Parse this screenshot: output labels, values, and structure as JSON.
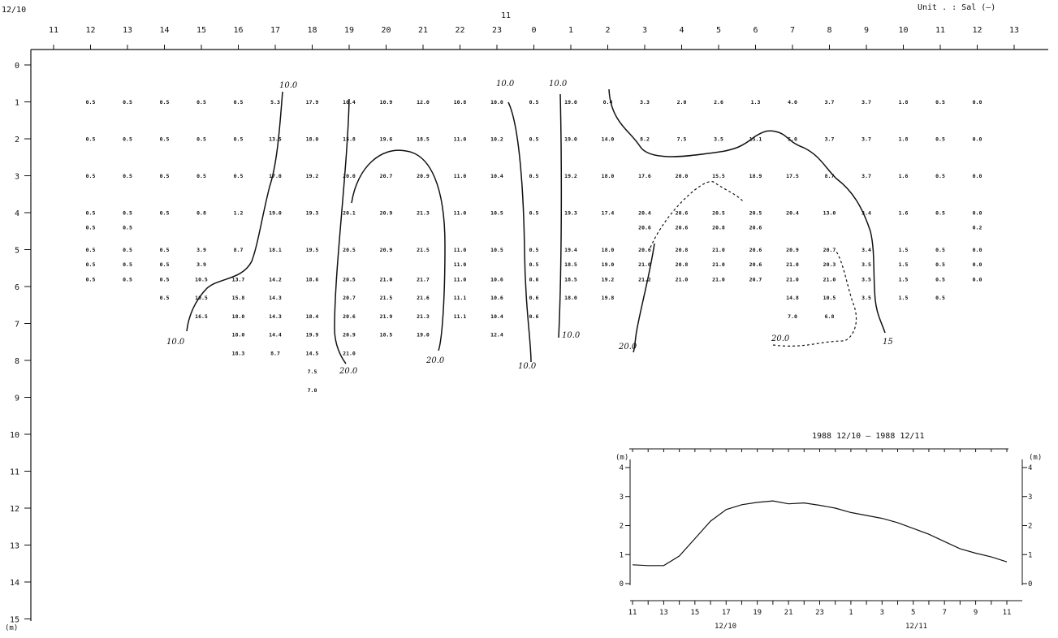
{
  "header": {
    "start_date": "12/10",
    "mid_date": "11",
    "unit_text": "Unit . : Sal (—)"
  },
  "chart_data": [
    {
      "type": "table",
      "title": "",
      "variable": "Sal",
      "x_axis": {
        "ticks": [
          "11",
          "12",
          "13",
          "14",
          "15",
          "16",
          "17",
          "18",
          "19",
          "20",
          "21",
          "22",
          "23",
          "0",
          "1",
          "2",
          "3",
          "4",
          "5",
          "6",
          "7",
          "8",
          "9",
          "10",
          "11",
          "12",
          "13"
        ]
      },
      "y_axis": {
        "ticks": [
          "0",
          "1",
          "2",
          "3",
          "4",
          "5",
          "6",
          "7",
          "8",
          "9",
          "10",
          "11",
          "12",
          "13",
          "14",
          "15"
        ],
        "unit": "(m)",
        "range": [
          0,
          15
        ],
        "inverted": true
      },
      "columns": [
        {
          "hour": "12",
          "points": [
            [
              1,
              "0.5"
            ],
            [
              2,
              "0.5"
            ],
            [
              3,
              "0.5"
            ],
            [
              4,
              "0.5"
            ],
            [
              4.4,
              "0.5"
            ],
            [
              5,
              "0.5"
            ],
            [
              5.4,
              "0.5"
            ],
            [
              5.8,
              "0.5"
            ]
          ]
        },
        {
          "hour": "13",
          "points": [
            [
              1,
              "0.5"
            ],
            [
              2,
              "0.5"
            ],
            [
              3,
              "0.5"
            ],
            [
              4,
              "0.5"
            ],
            [
              4.4,
              "0.5"
            ],
            [
              5,
              "0.5"
            ],
            [
              5.4,
              "0.5"
            ],
            [
              5.8,
              "0.5"
            ]
          ]
        },
        {
          "hour": "14",
          "points": [
            [
              1,
              "0.5"
            ],
            [
              2,
              "0.5"
            ],
            [
              3,
              "0.5"
            ],
            [
              4,
              "0.5"
            ],
            [
              5,
              "0.5"
            ],
            [
              5.4,
              "0.5"
            ],
            [
              5.8,
              "0.5"
            ],
            [
              6.3,
              "0.5"
            ]
          ]
        },
        {
          "hour": "15",
          "points": [
            [
              1,
              "0.5"
            ],
            [
              2,
              "0.5"
            ],
            [
              3,
              "0.5"
            ],
            [
              4,
              "0.8"
            ],
            [
              5,
              "3.9"
            ],
            [
              5.4,
              "3.9"
            ],
            [
              5.8,
              "10.5"
            ],
            [
              6.3,
              "10.5"
            ],
            [
              6.8,
              "16.5"
            ]
          ]
        },
        {
          "hour": "16",
          "points": [
            [
              1,
              "0.5"
            ],
            [
              2,
              "0.5"
            ],
            [
              3,
              "0.5"
            ],
            [
              4,
              "1.2"
            ],
            [
              5,
              "8.7"
            ],
            [
              5.8,
              "13.7"
            ],
            [
              6.3,
              "15.8"
            ],
            [
              6.8,
              "18.0"
            ],
            [
              7.3,
              "18.0"
            ],
            [
              7.8,
              "18.3"
            ]
          ]
        },
        {
          "hour": "17",
          "points": [
            [
              1,
              "5.3"
            ],
            [
              2,
              "13.5"
            ],
            [
              3,
              "17.0"
            ],
            [
              4,
              "19.0"
            ],
            [
              5,
              "18.1"
            ],
            [
              5.8,
              "14.2"
            ],
            [
              6.3,
              "14.3"
            ],
            [
              6.8,
              "14.3"
            ],
            [
              7.3,
              "14.4"
            ],
            [
              7.8,
              "8.7"
            ]
          ]
        },
        {
          "hour": "18",
          "points": [
            [
              1,
              "17.9"
            ],
            [
              2,
              "18.0"
            ],
            [
              3,
              "19.2"
            ],
            [
              4,
              "19.3"
            ],
            [
              5,
              "19.5"
            ],
            [
              5.8,
              "18.6"
            ],
            [
              6.8,
              "18.4"
            ],
            [
              7.3,
              "19.9"
            ],
            [
              7.8,
              "14.5"
            ],
            [
              8.3,
              "7.5"
            ],
            [
              8.8,
              "7.0"
            ]
          ]
        },
        {
          "hour": "19",
          "points": [
            [
              1,
              "10.4"
            ],
            [
              2,
              "15.8"
            ],
            [
              3,
              "20.0"
            ],
            [
              4,
              "20.1"
            ],
            [
              5,
              "20.5"
            ],
            [
              5.8,
              "20.5"
            ],
            [
              6.3,
              "20.7"
            ],
            [
              6.8,
              "20.6"
            ],
            [
              7.3,
              "20.9"
            ],
            [
              7.8,
              "21.0"
            ]
          ]
        },
        {
          "hour": "20",
          "points": [
            [
              1,
              "10.9"
            ],
            [
              2,
              "19.6"
            ],
            [
              3,
              "20.7"
            ],
            [
              4,
              "20.9"
            ],
            [
              5,
              "20.9"
            ],
            [
              5.8,
              "21.0"
            ],
            [
              6.3,
              "21.5"
            ],
            [
              6.8,
              "21.9"
            ],
            [
              7.3,
              "18.5"
            ]
          ]
        },
        {
          "hour": "21",
          "points": [
            [
              1,
              "12.0"
            ],
            [
              2,
              "18.5"
            ],
            [
              3,
              "20.9"
            ],
            [
              4,
              "21.3"
            ],
            [
              5,
              "21.5"
            ],
            [
              5.8,
              "21.7"
            ],
            [
              6.3,
              "21.6"
            ],
            [
              6.8,
              "21.3"
            ],
            [
              7.3,
              "19.0"
            ]
          ]
        },
        {
          "hour": "22",
          "points": [
            [
              1,
              "10.8"
            ],
            [
              2,
              "11.0"
            ],
            [
              3,
              "11.0"
            ],
            [
              4,
              "11.0"
            ],
            [
              5,
              "11.0"
            ],
            [
              5.4,
              "11.0"
            ],
            [
              5.8,
              "11.0"
            ],
            [
              6.3,
              "11.1"
            ],
            [
              6.8,
              "11.1"
            ]
          ]
        },
        {
          "hour": "23",
          "points": [
            [
              1,
              "10.0"
            ],
            [
              2,
              "10.2"
            ],
            [
              3,
              "10.4"
            ],
            [
              4,
              "10.5"
            ],
            [
              5,
              "10.5"
            ],
            [
              5.8,
              "10.6"
            ],
            [
              6.3,
              "10.6"
            ],
            [
              6.8,
              "10.4"
            ],
            [
              7.3,
              "12.4"
            ]
          ]
        },
        {
          "hour": "0",
          "points": [
            [
              1,
              "0.5"
            ],
            [
              2,
              "0.5"
            ],
            [
              3,
              "0.5"
            ],
            [
              4,
              "0.5"
            ],
            [
              5,
              "0.5"
            ],
            [
              5.4,
              "0.5"
            ],
            [
              5.8,
              "0.6"
            ],
            [
              6.3,
              "0.6"
            ],
            [
              6.8,
              "0.6"
            ]
          ]
        },
        {
          "hour": "1",
          "points": [
            [
              1,
              "19.0"
            ],
            [
              2,
              "19.0"
            ],
            [
              3,
              "19.2"
            ],
            [
              4,
              "19.3"
            ],
            [
              5,
              "19.4"
            ],
            [
              5.4,
              "18.5"
            ],
            [
              5.8,
              "18.5"
            ],
            [
              6.3,
              "18.0"
            ]
          ]
        },
        {
          "hour": "2",
          "points": [
            [
              1,
              "0.4"
            ],
            [
              2,
              "14.0"
            ],
            [
              3,
              "18.0"
            ],
            [
              4,
              "17.4"
            ],
            [
              5,
              "18.0"
            ],
            [
              5.4,
              "19.0"
            ],
            [
              5.8,
              "19.2"
            ],
            [
              6.3,
              "19.8"
            ]
          ]
        },
        {
          "hour": "3",
          "points": [
            [
              1,
              "3.3"
            ],
            [
              2,
              "8.2"
            ],
            [
              3,
              "17.6"
            ],
            [
              4,
              "20.4"
            ],
            [
              4.4,
              "20.6"
            ],
            [
              5,
              "20.6"
            ],
            [
              5.4,
              "21.0"
            ],
            [
              5.8,
              "21.2"
            ]
          ]
        },
        {
          "hour": "4",
          "points": [
            [
              1,
              "2.0"
            ],
            [
              2,
              "7.5"
            ],
            [
              3,
              "20.0"
            ],
            [
              4,
              "20.6"
            ],
            [
              4.4,
              "20.6"
            ],
            [
              5,
              "20.8"
            ],
            [
              5.4,
              "20.8"
            ],
            [
              5.8,
              "21.0"
            ]
          ]
        },
        {
          "hour": "5",
          "points": [
            [
              1,
              "2.6"
            ],
            [
              2,
              "3.5"
            ],
            [
              3,
              "15.5"
            ],
            [
              4,
              "20.5"
            ],
            [
              4.4,
              "20.8"
            ],
            [
              5,
              "21.0"
            ],
            [
              5.4,
              "21.0"
            ],
            [
              5.8,
              "21.0"
            ]
          ]
        },
        {
          "hour": "6",
          "points": [
            [
              1,
              "1.3"
            ],
            [
              2,
              "15.1"
            ],
            [
              3,
              "18.9"
            ],
            [
              4,
              "20.5"
            ],
            [
              4.4,
              "20.6"
            ],
            [
              5,
              "20.6"
            ],
            [
              5.4,
              "20.6"
            ],
            [
              5.8,
              "20.7"
            ]
          ]
        },
        {
          "hour": "7",
          "points": [
            [
              1,
              "4.0"
            ],
            [
              2,
              "5.0"
            ],
            [
              3,
              "17.5"
            ],
            [
              4,
              "20.4"
            ],
            [
              5,
              "20.9"
            ],
            [
              5.4,
              "21.0"
            ],
            [
              5.8,
              "21.0"
            ],
            [
              6.3,
              "14.8"
            ],
            [
              6.8,
              "7.0"
            ]
          ]
        },
        {
          "hour": "8",
          "points": [
            [
              1,
              "3.7"
            ],
            [
              2,
              "3.7"
            ],
            [
              3,
              "8.7"
            ],
            [
              4,
              "13.0"
            ],
            [
              5,
              "20.7"
            ],
            [
              5.4,
              "20.3"
            ],
            [
              5.8,
              "21.0"
            ],
            [
              6.3,
              "10.5"
            ],
            [
              6.8,
              "6.8"
            ]
          ]
        },
        {
          "hour": "9",
          "points": [
            [
              1,
              "3.7"
            ],
            [
              2,
              "3.7"
            ],
            [
              3,
              "3.7"
            ],
            [
              4,
              "3.4"
            ],
            [
              5,
              "3.4"
            ],
            [
              5.4,
              "3.5"
            ],
            [
              5.8,
              "3.5"
            ],
            [
              6.3,
              "3.5"
            ]
          ]
        },
        {
          "hour": "10",
          "points": [
            [
              1,
              "1.8"
            ],
            [
              2,
              "1.8"
            ],
            [
              3,
              "1.6"
            ],
            [
              4,
              "1.6"
            ],
            [
              5,
              "1.5"
            ],
            [
              5.4,
              "1.5"
            ],
            [
              5.8,
              "1.5"
            ],
            [
              6.3,
              "1.5"
            ]
          ]
        },
        {
          "hour": "11",
          "points": [
            [
              1,
              "0.5"
            ],
            [
              2,
              "0.5"
            ],
            [
              3,
              "0.5"
            ],
            [
              4,
              "0.5"
            ],
            [
              5,
              "0.5"
            ],
            [
              5.4,
              "0.5"
            ],
            [
              5.8,
              "0.5"
            ],
            [
              6.3,
              "0.5"
            ]
          ]
        },
        {
          "hour": "12",
          "points": [
            [
              1,
              "0.0"
            ],
            [
              2,
              "0.0"
            ],
            [
              3,
              "0.0"
            ],
            [
              4,
              "0.0"
            ],
            [
              4.4,
              "0.2"
            ],
            [
              5,
              "0.0"
            ],
            [
              5.4,
              "0.0"
            ],
            [
              5.8,
              "0.0"
            ]
          ]
        }
      ],
      "contour_labels": [
        "10.0",
        "10.0",
        "10.0",
        "10.0",
        "20.0",
        "20.0",
        "10.0",
        "10.0",
        "20.0",
        "20.0",
        "15"
      ]
    },
    {
      "type": "line",
      "title": "1988 12/10 – 1988 12/11",
      "ylabel": "(m)",
      "ylabel_right": "(m)",
      "y_ticks": [
        "4",
        "3",
        "2",
        "1",
        "0"
      ],
      "ylim": [
        0,
        4
      ],
      "x_tick_labels": [
        "11",
        "13",
        "15",
        "17",
        "19",
        "21",
        "23",
        "1",
        "3",
        "5",
        "7",
        "9",
        "11"
      ],
      "x_date_labels": [
        "12/10",
        "12/11"
      ],
      "xlim": [
        11,
        35
      ],
      "x": [
        11,
        12,
        13,
        14,
        15,
        16,
        17,
        18,
        19,
        20,
        21,
        22,
        23,
        24,
        25,
        26,
        27,
        28,
        29,
        30,
        31,
        32,
        33,
        34,
        35
      ],
      "y": [
        0.65,
        0.62,
        0.62,
        0.95,
        1.55,
        2.15,
        2.55,
        2.72,
        2.8,
        2.85,
        2.75,
        2.78,
        2.7,
        2.6,
        2.45,
        2.35,
        2.25,
        2.1,
        1.9,
        1.7,
        1.45,
        1.2,
        1.05,
        0.92,
        0.75
      ]
    }
  ]
}
